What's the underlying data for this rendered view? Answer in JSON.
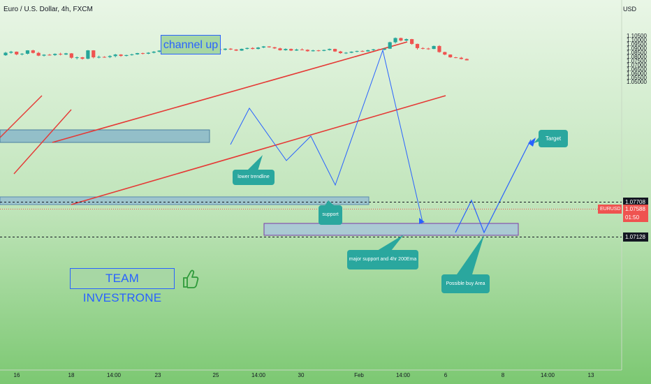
{
  "header": {
    "title": "Euro / U.S. Dollar, 4h, FXCM",
    "currency": "USD"
  },
  "chart_data": {
    "type": "candlestick",
    "symbol": "EURUSD",
    "ylim": [
      1.0479,
      1.1078
    ],
    "y_ticks": [
      "1.10500",
      "1.10000",
      "1.09500",
      "1.09000",
      "1.08500",
      "1.08000",
      "1.07500",
      "1.07000",
      "1.06500",
      "1.06000",
      "1.05500",
      "1.05000"
    ],
    "y_tick_values": [
      1.105,
      1.1,
      1.095,
      1.09,
      1.085,
      1.08,
      1.075,
      1.07,
      1.065,
      1.06,
      1.055,
      1.05
    ],
    "x_ticks": [
      "16",
      "18",
      "14:00",
      "23",
      "25",
      "14:00",
      "30",
      "Feb",
      "14:00",
      "6",
      "8",
      "14:00",
      "13"
    ],
    "price_tags": {
      "upper": "1.07708",
      "current_symbol": "EURUSD",
      "current": "1.07588",
      "countdown": "01:50",
      "lower": "1.07128"
    },
    "colors": {
      "up": "#26a69a",
      "down": "#ef5350",
      "line": "#e53935",
      "path": "#2962ff"
    },
    "candles": [
      [
        1.082,
        1.086,
        1.0812,
        1.085
      ],
      [
        1.085,
        1.0872,
        1.0838,
        1.0862
      ],
      [
        1.0862,
        1.0865,
        1.082,
        1.083
      ],
      [
        1.083,
        1.0845,
        1.0818,
        1.0838
      ],
      [
        1.0838,
        1.088,
        1.083,
        1.0878
      ],
      [
        1.0878,
        1.0885,
        1.084,
        1.0848
      ],
      [
        1.0848,
        1.086,
        1.0808,
        1.0815
      ],
      [
        1.0815,
        1.0832,
        1.0805,
        1.0826
      ],
      [
        1.0826,
        1.0836,
        1.0816,
        1.0822
      ],
      [
        1.0822,
        1.0842,
        1.0812,
        1.0836
      ],
      [
        1.0836,
        1.085,
        1.0818,
        1.0828
      ],
      [
        1.0828,
        1.0848,
        1.0823,
        1.0842
      ],
      [
        1.0842,
        1.0846,
        1.0778,
        1.079
      ],
      [
        1.079,
        1.0805,
        1.077,
        1.0795
      ],
      [
        1.0795,
        1.08,
        1.0768,
        1.0778
      ],
      [
        1.0778,
        1.0882,
        1.0772,
        1.0878
      ],
      [
        1.0878,
        1.088,
        1.0782,
        1.0795
      ],
      [
        1.0795,
        1.0815,
        1.0783,
        1.08
      ],
      [
        1.08,
        1.0808,
        1.079,
        1.0798
      ],
      [
        1.0798,
        1.082,
        1.0786,
        1.081
      ],
      [
        1.081,
        1.0836,
        1.0795,
        1.0828
      ],
      [
        1.0828,
        1.0833,
        1.0802,
        1.0812
      ],
      [
        1.0812,
        1.0826,
        1.0806,
        1.0822
      ],
      [
        1.0822,
        1.0838,
        1.0815,
        1.083
      ],
      [
        1.083,
        1.0848,
        1.0826,
        1.0845
      ],
      [
        1.0845,
        1.085,
        1.083,
        1.0838
      ],
      [
        1.0838,
        1.0856,
        1.0832,
        1.085
      ],
      [
        1.085,
        1.087,
        1.0842,
        1.0862
      ],
      [
        1.0862,
        1.088,
        1.0852,
        1.0875
      ],
      [
        1.0875,
        1.089,
        1.086,
        1.087
      ],
      [
        1.087,
        1.0905,
        1.0866,
        1.09
      ],
      [
        1.09,
        1.0925,
        1.0888,
        1.0918
      ],
      [
        1.0918,
        1.0922,
        1.0862,
        1.0868
      ],
      [
        1.0868,
        1.0882,
        1.086,
        1.0876
      ],
      [
        1.0876,
        1.089,
        1.087,
        1.0884
      ],
      [
        1.0884,
        1.0888,
        1.0862,
        1.087
      ],
      [
        1.087,
        1.089,
        1.0864,
        1.0886
      ],
      [
        1.0886,
        1.0895,
        1.0874,
        1.088
      ],
      [
        1.088,
        1.09,
        1.0872,
        1.0892
      ],
      [
        1.0892,
        1.0905,
        1.088,
        1.0885
      ],
      [
        1.0885,
        1.0903,
        1.0878,
        1.0898
      ],
      [
        1.0898,
        1.0905,
        1.0882,
        1.0888
      ],
      [
        1.0888,
        1.0893,
        1.087,
        1.0875
      ],
      [
        1.0875,
        1.09,
        1.0872,
        1.0896
      ],
      [
        1.0896,
        1.0912,
        1.0888,
        1.0906
      ],
      [
        1.0906,
        1.0915,
        1.089,
        1.0895
      ],
      [
        1.0895,
        1.0918,
        1.089,
        1.0912
      ],
      [
        1.0912,
        1.093,
        1.0905,
        1.0925
      ],
      [
        1.0925,
        1.0928,
        1.091,
        1.0915
      ],
      [
        1.0915,
        1.092,
        1.0895,
        1.0902
      ],
      [
        1.0902,
        1.091,
        1.0875,
        1.088
      ],
      [
        1.088,
        1.0902,
        1.0874,
        1.0895
      ],
      [
        1.0895,
        1.09,
        1.087,
        1.0876
      ],
      [
        1.0876,
        1.0898,
        1.0872,
        1.0888
      ],
      [
        1.0888,
        1.0902,
        1.088,
        1.0885
      ],
      [
        1.0885,
        1.089,
        1.0862,
        1.0868
      ],
      [
        1.0868,
        1.0886,
        1.0864,
        1.0878
      ],
      [
        1.0878,
        1.0884,
        1.0865,
        1.0872
      ],
      [
        1.0872,
        1.0888,
        1.0868,
        1.0882
      ],
      [
        1.0882,
        1.09,
        1.0876,
        1.0895
      ],
      [
        1.0895,
        1.0898,
        1.086,
        1.0865
      ],
      [
        1.0865,
        1.0872,
        1.0838,
        1.0845
      ],
      [
        1.0845,
        1.0858,
        1.0835,
        1.085
      ],
      [
        1.085,
        1.0866,
        1.0845,
        1.0862
      ],
      [
        1.0862,
        1.0875,
        1.0855,
        1.087
      ],
      [
        1.087,
        1.0878,
        1.086,
        1.0866
      ],
      [
        1.0866,
        1.0885,
        1.0862,
        1.088
      ],
      [
        1.088,
        1.0895,
        1.0872,
        1.089
      ],
      [
        1.089,
        1.0898,
        1.088,
        1.0885
      ],
      [
        1.0885,
        1.0902,
        1.088,
        1.0898
      ],
      [
        1.0898,
        1.0982,
        1.0895,
        1.0975
      ],
      [
        1.0975,
        1.1032,
        1.096,
        1.1025
      ],
      [
        1.1025,
        1.103,
        1.0985,
        1.0995
      ],
      [
        1.0995,
        1.102,
        1.0988,
        1.1012
      ],
      [
        1.1012,
        1.1015,
        1.0945,
        1.0955
      ],
      [
        1.0955,
        1.0958,
        1.0888,
        1.0905
      ],
      [
        1.0905,
        1.0915,
        1.089,
        1.09
      ],
      [
        1.09,
        1.091,
        1.0885,
        1.0895
      ],
      [
        1.0895,
        1.0935,
        1.0892,
        1.093
      ],
      [
        1.093,
        1.094,
        1.085,
        1.0858
      ],
      [
        1.0858,
        1.0862,
        1.082,
        1.0828
      ],
      [
        1.0828,
        1.083,
        1.079,
        1.0795
      ],
      [
        1.0795,
        1.08,
        1.0785,
        1.079
      ],
      [
        1.079,
        1.08,
        1.077,
        1.0775
      ],
      [
        1.0775,
        1.0782,
        1.0758,
        1.0759
      ]
    ]
  },
  "annotations": {
    "channel_label": "channel up",
    "lower_trendline": "lower trendline",
    "support": "support",
    "major_support": "major support and 4hr 200Ema",
    "target": "Target",
    "buy_area": "Possible buy Area",
    "team": "TEAM INVESTRONE"
  }
}
